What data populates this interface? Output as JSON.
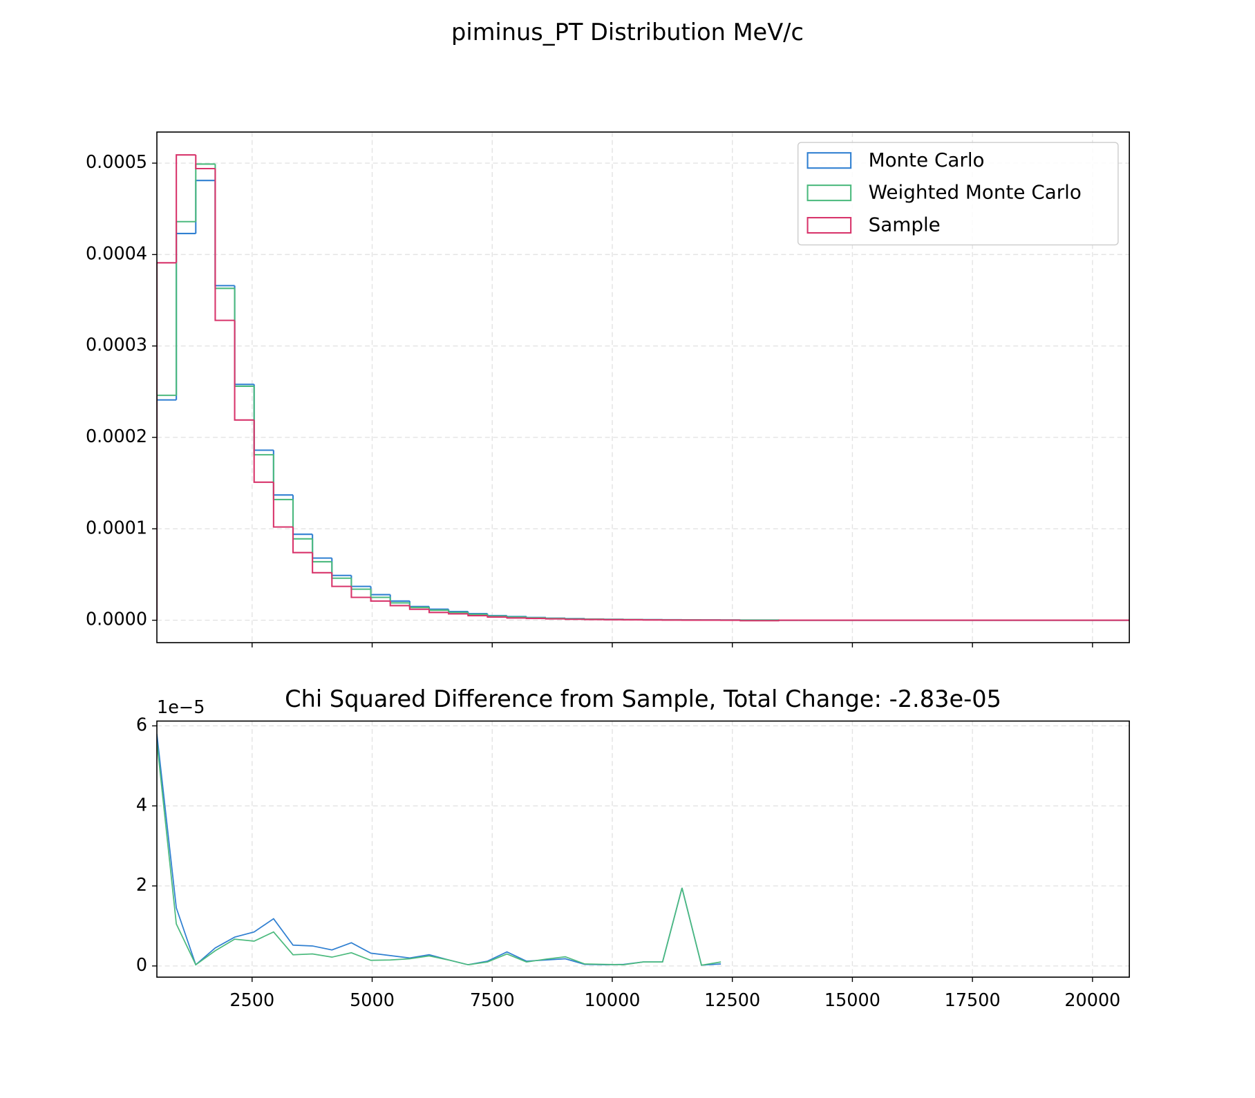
{
  "title": "piminus_PT Distribution MeV/c",
  "chart_data": [
    {
      "type": "histogram",
      "bins": [
        517,
        922,
        1327,
        1732,
        2137,
        2542,
        2947,
        3352,
        3757,
        4162,
        4567,
        4972,
        5377,
        5782,
        6187,
        6592,
        6997,
        7402,
        7807,
        8212,
        8617,
        9022,
        9427,
        9832,
        10237,
        10642,
        11047,
        11452,
        11857,
        12262,
        12667,
        13072,
        13477,
        13882,
        14287,
        14692,
        15097,
        15502,
        15907,
        16312,
        16717,
        17122,
        17527,
        17932,
        18337,
        18742,
        19147,
        19552,
        19957,
        20362,
        20767
      ],
      "series": [
        {
          "name": "Monte Carlo",
          "color": "#2f7fd1",
          "values": [
            0.000241,
            0.000423,
            0.000481,
            0.000366,
            0.000258,
            0.000186,
            0.000137,
            9.4e-05,
            6.8e-05,
            4.9e-05,
            3.7e-05,
            2.8e-05,
            2.1e-05,
            1.5e-05,
            1.2e-05,
            9.5e-06,
            7.2e-06,
            5e-06,
            4e-06,
            3e-06,
            2.2e-06,
            1.7e-06,
            1.3e-06,
            1e-06,
            8e-07,
            6e-07,
            5e-07,
            4e-07,
            3e-07,
            2e-07,
            1e-07,
            1e-07,
            0,
            0,
            0,
            0,
            0,
            0,
            0,
            0,
            0,
            0,
            0,
            0,
            0,
            0,
            0,
            0,
            0,
            0
          ]
        },
        {
          "name": "Weighted Monte Carlo",
          "color": "#4cba7e",
          "values": [
            0.000246,
            0.000436,
            0.000499,
            0.000363,
            0.000256,
            0.000181,
            0.000132,
            8.9e-05,
            6.4e-05,
            4.6e-05,
            3.4e-05,
            2.5e-05,
            1.9e-05,
            1.4e-05,
            1.1e-05,
            8.5e-06,
            6.5e-06,
            4.5e-06,
            3.5e-06,
            2.7e-06,
            2e-06,
            1.5e-06,
            1.2e-06,
            9e-07,
            7e-07,
            5e-07,
            4e-07,
            3e-07,
            2e-07,
            2e-07,
            1e-07,
            1e-07,
            0,
            0,
            0,
            0,
            0,
            0,
            0,
            0,
            0,
            0,
            0,
            0,
            0,
            0,
            0,
            0,
            0,
            0
          ]
        },
        {
          "name": "Sample",
          "color": "#d8346b",
          "values": [
            0.000391,
            0.000509,
            0.000494,
            0.000328,
            0.000219,
            0.000151,
            0.000102,
            7.4e-05,
            5.2e-05,
            3.7e-05,
            2.5e-05,
            2.1e-05,
            1.6e-05,
            1.2e-05,
            8.5e-06,
            7e-06,
            5e-06,
            3.5e-06,
            2.5e-06,
            2e-06,
            1.5e-06,
            1e-06,
            8e-07,
            6e-07,
            5e-07,
            3e-07,
            2e-07,
            1e-07,
            1e-07,
            0,
            -5e-07,
            -5e-07,
            0,
            0,
            0,
            0,
            0,
            0,
            0,
            0,
            0,
            0,
            0,
            0,
            0,
            0,
            0,
            0,
            0,
            0
          ]
        }
      ],
      "xlim": [
        517,
        20767
      ],
      "xticks": [
        2500,
        5000,
        7500,
        10000,
        12500,
        15000,
        17500,
        20000
      ],
      "ylim": [
        -2.45e-05,
        0.000534
      ],
      "yticks": [
        {
          "value": 0,
          "label": "0.0000"
        },
        {
          "value": 0.0001,
          "label": "0.0001"
        },
        {
          "value": 0.0002,
          "label": "0.0002"
        },
        {
          "value": 0.0003,
          "label": "0.0003"
        },
        {
          "value": 0.0004,
          "label": "0.0004"
        },
        {
          "value": 0.0005,
          "label": "0.0005"
        }
      ],
      "grid": true,
      "legend": "upper right"
    },
    {
      "type": "line",
      "title": "Chi Squared Difference from Sample, Total Change: -2.83e-05",
      "y_offset_label": "1e−5",
      "x": [
        517,
        922,
        1327,
        1732,
        2137,
        2542,
        2947,
        3352,
        3757,
        4162,
        4567,
        4972,
        5377,
        5782,
        6187,
        6592,
        6997,
        7402,
        7807,
        8212,
        8617,
        9022,
        9427,
        9832,
        10237,
        10642,
        11047,
        11452,
        11857,
        12262
      ],
      "series": [
        {
          "color": "#2f7fd1",
          "values": [
            5.8,
            1.45,
            0.03,
            0.45,
            0.72,
            0.85,
            1.18,
            0.52,
            0.5,
            0.4,
            0.58,
            0.32,
            0.26,
            0.2,
            0.28,
            0.15,
            0.03,
            0.12,
            0.35,
            0.12,
            0.15,
            0.18,
            0.04,
            0.03,
            0.04,
            0.1,
            0.1,
            1.95,
            0.02,
            0.05
          ]
        },
        {
          "color": "#4cba7e",
          "values": [
            5.6,
            1.05,
            0.03,
            0.38,
            0.67,
            0.62,
            0.85,
            0.28,
            0.3,
            0.22,
            0.33,
            0.14,
            0.15,
            0.18,
            0.25,
            0.15,
            0.03,
            0.1,
            0.3,
            0.1,
            0.17,
            0.23,
            0.05,
            0.04,
            0.03,
            0.1,
            0.1,
            1.95,
            0.02,
            0.1
          ]
        }
      ],
      "xlim": [
        517,
        20767
      ],
      "xticks": [
        2500,
        5000,
        7500,
        10000,
        12500,
        15000,
        17500,
        20000
      ],
      "ylim": [
        -0.28,
        6.12
      ],
      "yticks": [
        0,
        2,
        4,
        6
      ],
      "grid": true
    }
  ]
}
